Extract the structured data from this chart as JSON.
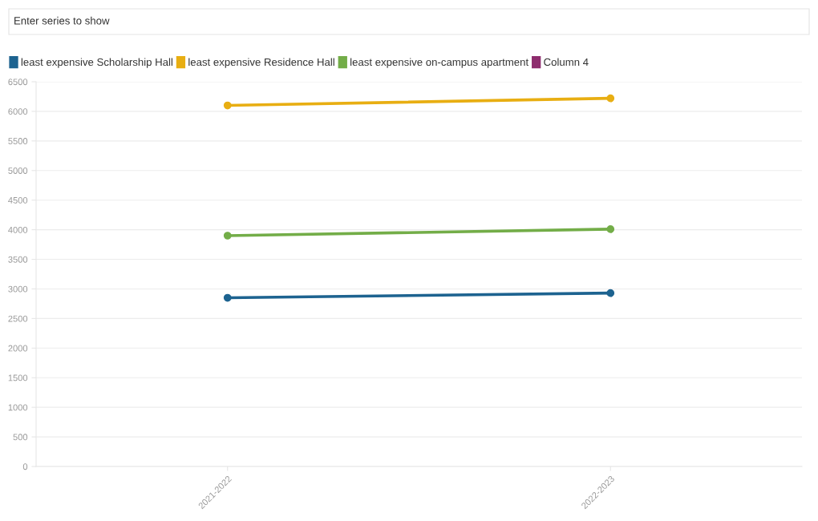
{
  "chart_data": {
    "type": "line",
    "categories": [
      "2021-2022",
      "2022-2023"
    ],
    "series": [
      {
        "name": "least expensive Scholarship Hall",
        "color": "#1d6390",
        "values": [
          2850,
          2930
        ]
      },
      {
        "name": "least expensive Residence Hall",
        "color": "#e8ae12",
        "values": [
          6100,
          6220
        ]
      },
      {
        "name": "least expensive on-campus apartment",
        "color": "#73ad48",
        "values": [
          3900,
          4010
        ]
      },
      {
        "name": "Column 4",
        "color": "#8e2d6e",
        "values": [
          null,
          null
        ]
      }
    ],
    "ylim": [
      0,
      6500
    ],
    "yticks": [
      0,
      500,
      1000,
      1500,
      2000,
      2500,
      3000,
      3500,
      4000,
      4500,
      5000,
      5500,
      6000,
      6500
    ],
    "grid": "y",
    "legend": "top left",
    "marker": "circle",
    "line_style": "solid",
    "annotations": [
      "Enter series to show"
    ]
  }
}
